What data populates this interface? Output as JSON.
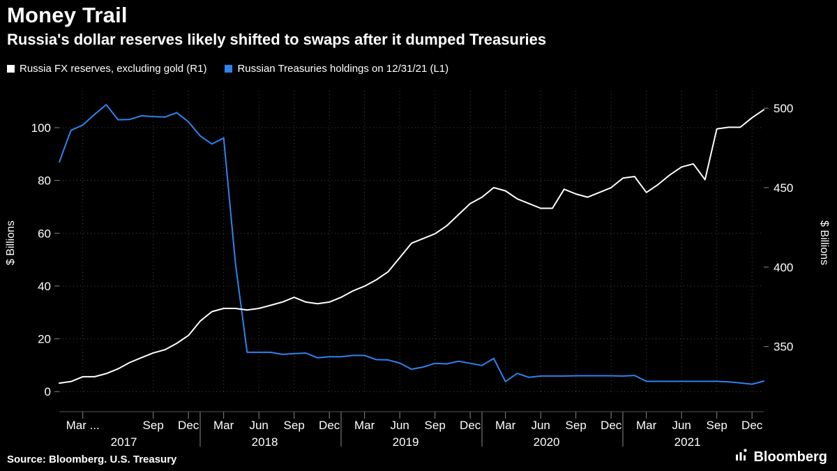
{
  "header": {
    "title": "Money Trail",
    "subtitle": "Russia's dollar reserves likely shifted to swaps after it dumped Treasuries"
  },
  "legend": {
    "items": [
      {
        "label": "Russia FX reserves, excluding gold (R1)",
        "color": "#ffffff"
      },
      {
        "label": "Russian Treasuries holdings on 12/31/21 (L1)",
        "color": "#2d83f0"
      }
    ]
  },
  "chart_data": {
    "type": "line",
    "x_unit": "month",
    "x_start": "2017-01",
    "x_end": "2022-01",
    "grid": "dotted",
    "legend_position": "top-left",
    "left_axis": {
      "title": "$ Billions",
      "ticks": [
        0,
        20,
        40,
        60,
        80,
        100
      ],
      "range": [
        -1,
        114
      ]
    },
    "right_axis": {
      "title": "$ Billions",
      "ticks": [
        350,
        400,
        450,
        500
      ],
      "range": [
        320,
        511
      ]
    },
    "x_ticks": [
      {
        "index": 2,
        "label": "Mar ..."
      },
      {
        "index": 8,
        "label": "Sep"
      },
      {
        "index": 11,
        "label": "Dec"
      },
      {
        "index": 14,
        "label": "Mar"
      },
      {
        "index": 17,
        "label": "Jun"
      },
      {
        "index": 20,
        "label": "Sep"
      },
      {
        "index": 23,
        "label": "Dec"
      },
      {
        "index": 26,
        "label": "Mar"
      },
      {
        "index": 29,
        "label": "Jun"
      },
      {
        "index": 32,
        "label": "Sep"
      },
      {
        "index": 35,
        "label": "Dec"
      },
      {
        "index": 38,
        "label": "Mar"
      },
      {
        "index": 41,
        "label": "Jun"
      },
      {
        "index": 44,
        "label": "Sep"
      },
      {
        "index": 47,
        "label": "Dec"
      },
      {
        "index": 50,
        "label": "Mar"
      },
      {
        "index": 53,
        "label": "Jun"
      },
      {
        "index": 56,
        "label": "Sep"
      },
      {
        "index": 59,
        "label": "Dec"
      }
    ],
    "year_labels": [
      {
        "label": "2017",
        "index": 5.5
      },
      {
        "label": "2018",
        "index": 17.5
      },
      {
        "label": "2019",
        "index": 29.5
      },
      {
        "label": "2020",
        "index": 41.5
      },
      {
        "label": "2021",
        "index": 53.5
      }
    ],
    "year_separator_indices": [
      12,
      24,
      36,
      48
    ],
    "series": [
      {
        "name": "Russia FX reserves, excluding gold (R1)",
        "axis": "right",
        "color": "#ffffff",
        "values": [
          327,
          328,
          331,
          331,
          333,
          336,
          340,
          343,
          346,
          348,
          352,
          357,
          366,
          372,
          374,
          374,
          373,
          374,
          376,
          378,
          381,
          378,
          377,
          378,
          381,
          385,
          388,
          392,
          397,
          406,
          415,
          418,
          421,
          426,
          433,
          440,
          444,
          450,
          448,
          443,
          440,
          437,
          437,
          449,
          446,
          444,
          447,
          450,
          456,
          457,
          447,
          452,
          458,
          463,
          465,
          455,
          487,
          488,
          488,
          494,
          499
        ]
      },
      {
        "name": "Russian Treasuries holdings on 12/31/21 (L1)",
        "axis": "left",
        "color": "#2d83f0",
        "values": [
          87,
          99,
          101,
          105,
          108.7,
          103,
          103.1,
          104.5,
          104.2,
          104,
          105.7,
          102.2,
          96.9,
          93.8,
          96.1,
          48.7,
          14.9,
          14.9,
          14.9,
          14.1,
          14.4,
          14.6,
          12.8,
          13.2,
          13.2,
          13.7,
          13.7,
          12.1,
          12,
          10.8,
          8.5,
          9.3,
          10.7,
          10.5,
          11.5,
          10.7,
          9.9,
          12.6,
          3.8,
          6.9,
          5.4,
          5.9,
          5.9,
          5.9,
          6,
          6,
          6,
          6,
          5.9,
          6.1,
          3.9,
          3.9,
          3.9,
          3.9,
          3.9,
          3.9,
          3.9,
          3.7,
          3.3,
          2.8,
          4
        ]
      }
    ]
  },
  "footer": {
    "source": "Source: Bloomberg. U.S. Treasury",
    "logo_text": "Bloomberg"
  },
  "colors": {
    "background": "#000000",
    "text": "#ffffff",
    "grid": "#4a4a4a",
    "axis": "#8a8a8a",
    "blue": "#2d83f0",
    "white": "#ffffff"
  }
}
